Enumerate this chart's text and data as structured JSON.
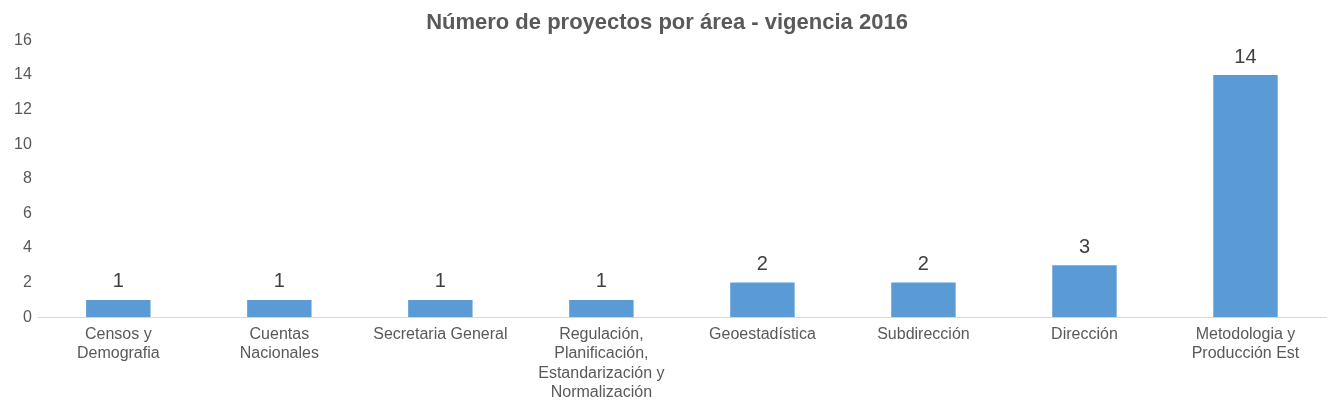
{
  "chart_data": {
    "type": "bar",
    "title": "Número de proyectos por área - vigencia 2016",
    "categories": [
      "Censos y Demografia",
      "Cuentas Nacionales",
      "Secretaria General",
      "Regulación, Planificación, Estandarización y Normalización",
      "Geoestadística",
      "Subdirección",
      "Dirección",
      "Metodologia y Producción Est"
    ],
    "values": [
      1,
      1,
      1,
      1,
      2,
      2,
      3,
      14
    ],
    "color": "#5b9bd5",
    "ylim": [
      0,
      16
    ],
    "yticks": [
      0,
      2,
      4,
      6,
      8,
      10,
      12,
      14,
      16
    ],
    "grid": false,
    "legend": false,
    "data_labels": true
  }
}
